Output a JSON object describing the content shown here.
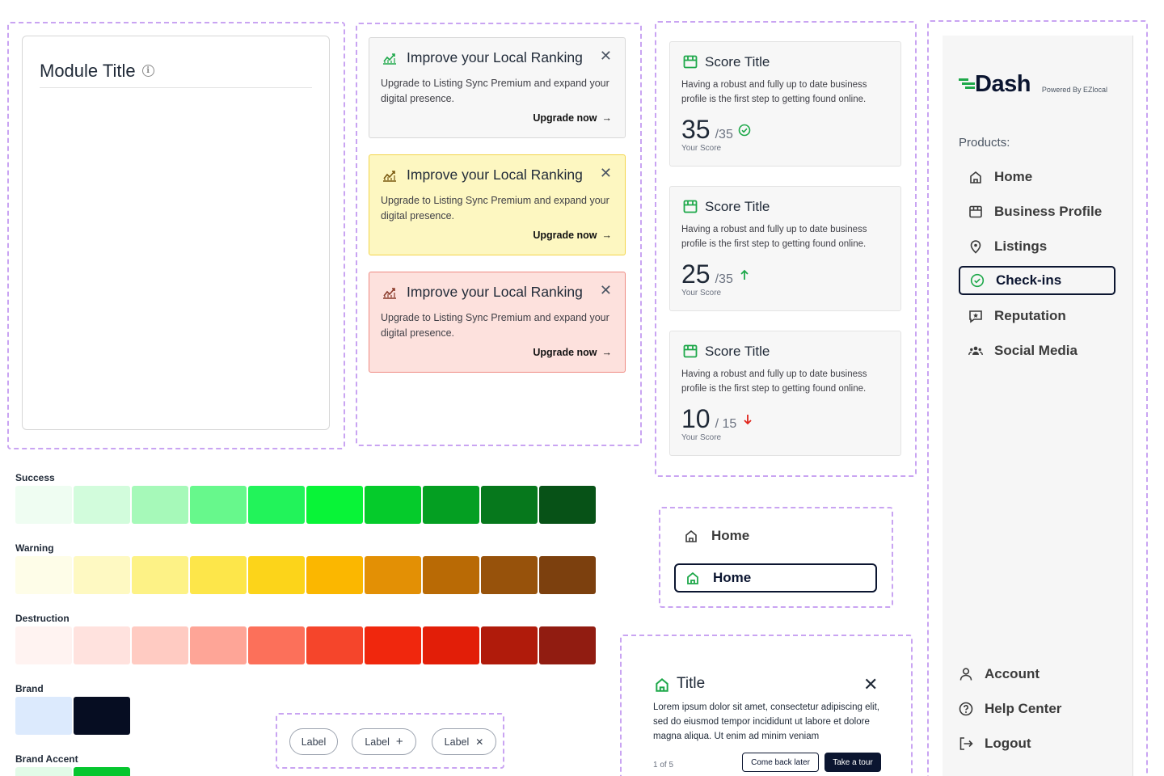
{
  "module": {
    "title": "Module Title"
  },
  "banners": [
    {
      "title": "Improve your Local Ranking",
      "body": "Upgrade to Listing Sync Premium and expand your digital presence.",
      "cta": "Upgrade now",
      "variant": "neutral",
      "icon": "trending-up-icon",
      "accent": "#1ea84a"
    },
    {
      "title": "Improve your Local Ranking",
      "body": "Upgrade to Listing Sync Premium and expand your digital presence.",
      "cta": "Upgrade now",
      "variant": "warning",
      "icon": "trending-up-icon",
      "accent": "#7a5a10"
    },
    {
      "title": "Improve your Local Ranking",
      "body": "Upgrade to Listing Sync Premium and expand your digital presence.",
      "cta": "Upgrade now",
      "variant": "destruction",
      "icon": "trending-up-icon",
      "accent": "#8a3a2a"
    }
  ],
  "scores": [
    {
      "title": "Score Title",
      "description": "Having a robust and fully up to date business profile is the first step to getting found online.",
      "value": "35",
      "denominator": "/35",
      "status": "check-circle-icon",
      "label": "Your Score"
    },
    {
      "title": "Score Title",
      "description": "Having a robust and fully up to date business profile is the first step to getting found online.",
      "value": "25",
      "denominator": "/35",
      "status": "arrow-up-icon",
      "label": "Your Score"
    },
    {
      "title": "Score Title",
      "description": "Having a robust and fully up to date business profile is the first step to getting found online.",
      "value": "10",
      "denominator": "/ 15",
      "status": "arrow-down-icon",
      "label": "Your Score"
    }
  ],
  "sidebar": {
    "logo": "Dash",
    "powered_by": "Powered By EZlocal",
    "products_label": "Products:",
    "items": [
      {
        "label": "Home",
        "icon": "home-icon",
        "active": false
      },
      {
        "label": "Business Profile",
        "icon": "storefront-icon",
        "active": false
      },
      {
        "label": "Listings",
        "icon": "map-pin-icon",
        "active": false
      },
      {
        "label": "Check-ins",
        "icon": "check-circle-icon",
        "active": true
      },
      {
        "label": "Reputation",
        "icon": "star-message-icon",
        "active": false
      },
      {
        "label": "Social Media",
        "icon": "users-icon",
        "active": false
      }
    ],
    "footer": [
      {
        "label": "Account",
        "icon": "user-icon"
      },
      {
        "label": "Help Center",
        "icon": "help-circle-icon"
      },
      {
        "label": "Logout",
        "icon": "logout-icon"
      }
    ]
  },
  "palettes": [
    {
      "name": "Success",
      "colors": [
        "#effdf2",
        "#d2fcdc",
        "#a6f9b9",
        "#67f88c",
        "#22f35a",
        "#08f437",
        "#05cb2b",
        "#049f22",
        "#06781c",
        "#075217"
      ]
    },
    {
      "name": "Warning",
      "colors": [
        "#fefde8",
        "#fef9c2",
        "#fdf286",
        "#fde64a",
        "#fcd41a",
        "#fbb700",
        "#e39005",
        "#b96a05",
        "#97520b",
        "#7c400e"
      ]
    },
    {
      "name": "Destruction",
      "colors": [
        "#fff3f1",
        "#ffe2de",
        "#ffcbc2",
        "#fea597",
        "#fc705a",
        "#f5452b",
        "#f0270d",
        "#e21e08",
        "#b01b0b",
        "#911c11"
      ]
    },
    {
      "name": "Brand",
      "colors": [
        "#dceafd",
        "#060d22"
      ]
    },
    {
      "name": "Brand Accent",
      "colors": [
        "#e2fbe8",
        "#06c62f"
      ]
    }
  ],
  "home_nav": [
    {
      "label": "Home",
      "active": false
    },
    {
      "label": "Home",
      "active": true
    }
  ],
  "tour": {
    "title": "Title",
    "body": "Lorem ipsum dolor sit amet, consectetur adipiscing elit, sed do eiusmod tempor incididunt ut labore et dolore magna aliqua. Ut enim ad minim veniam",
    "count": "1 of 5",
    "secondary": "Come back later",
    "primary": "Take a tour"
  },
  "chips": [
    {
      "label": "Label",
      "icon": ""
    },
    {
      "label": "Label",
      "icon": "plus-icon"
    },
    {
      "label": "Label",
      "icon": "close-icon"
    }
  ]
}
